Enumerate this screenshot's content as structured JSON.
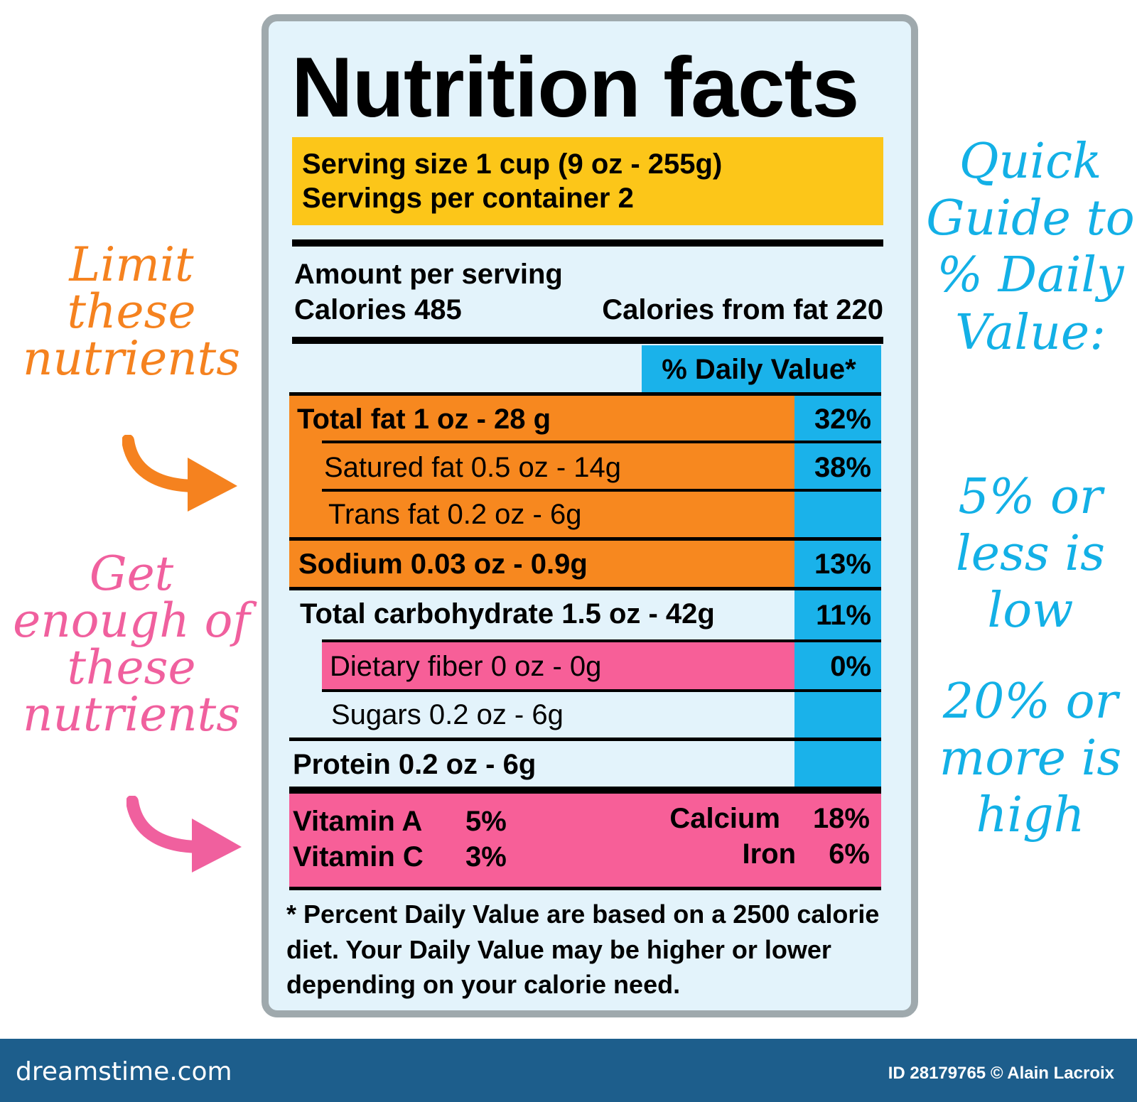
{
  "notes": {
    "limit": "Limit these nutrients",
    "get": "Get enough of these nutrients",
    "guide": "Quick Guide to % Daily Value:",
    "low": "5% or less is low",
    "high": "20% or more is high"
  },
  "label": {
    "title": "Nutrition facts",
    "serving_size": "Serving size 1 cup (9 oz - 255g)",
    "servings_per_container": "Servings per container 2",
    "amount_per_serving": "Amount per serving",
    "calories": "Calories 485",
    "calories_from_fat": "Calories from fat 220",
    "daily_value_header": "% Daily Value*",
    "rows": [
      {
        "label": "Total fat 1 oz - 28 g",
        "pct": "32%"
      },
      {
        "label": "Satured fat 0.5 oz - 14g",
        "pct": "38%"
      },
      {
        "label": "Trans fat 0.2 oz - 6g",
        "pct": ""
      },
      {
        "label": "Sodium 0.03 oz - 0.9g",
        "pct": "13%"
      },
      {
        "label": "Total carbohydrate 1.5 oz - 42g",
        "pct": "11%"
      },
      {
        "label": "Dietary fiber 0 oz - 0g",
        "pct": "0%"
      },
      {
        "label": "Sugars 0.2 oz - 6g",
        "pct": ""
      },
      {
        "label": "Protein 0.2 oz - 6g",
        "pct": ""
      }
    ],
    "vitamins": {
      "vitamin_a": "Vitamin A",
      "vitamin_a_pct": "5%",
      "vitamin_c": "Vitamin C",
      "vitamin_c_pct": "3%",
      "calcium": "Calcium",
      "calcium_pct": "18%",
      "iron": "Iron",
      "iron_pct": "6%"
    },
    "footnote": "* Percent Daily Value are based on a 2500 calorie diet. Your Daily Value may be higher or lower depending on your calorie need."
  },
  "footer": {
    "brand": "dreamstime.com",
    "credit": "ID 28179765 © Alain Lacroix"
  },
  "colors": {
    "limit": "#f5821f",
    "get": "#f0609e",
    "guide": "#13b0e6",
    "orange_fill": "#f7881f",
    "pink_fill": "#f75f98",
    "blue_fill": "#1ab2ea",
    "serving_fill": "#fcc619",
    "bar": "#1d5e8c"
  }
}
